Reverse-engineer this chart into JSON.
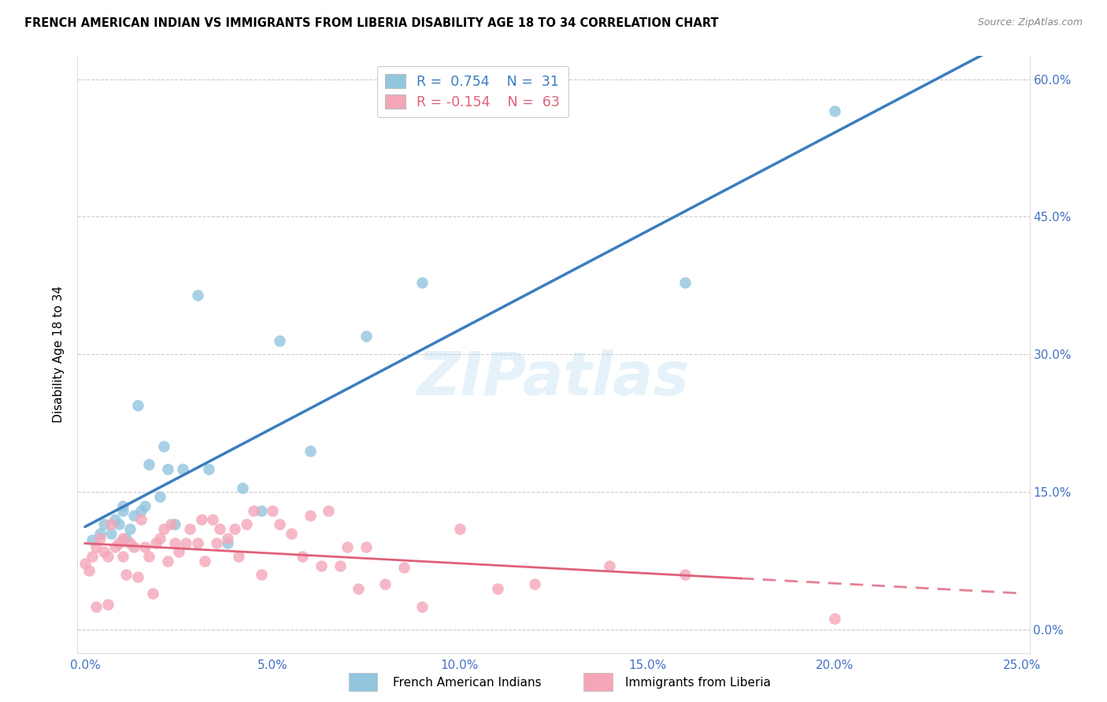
{
  "title": "FRENCH AMERICAN INDIAN VS IMMIGRANTS FROM LIBERIA DISABILITY AGE 18 TO 34 CORRELATION CHART",
  "source": "Source: ZipAtlas.com",
  "xlabel_ticks": [
    "0.0%",
    "5.0%",
    "10.0%",
    "15.0%",
    "20.0%",
    "25.0%"
  ],
  "ylabel_ticks_right": [
    "60.0%",
    "45.0%",
    "30.0%",
    "15.0%"
  ],
  "xlim": [
    0.0,
    0.25
  ],
  "ylim": [
    -0.025,
    0.625
  ],
  "ylabel": "Disability Age 18 to 34",
  "legend_labels": [
    "French American Indians",
    "Immigrants from Liberia"
  ],
  "blue_R": "R =  0.754",
  "blue_N": "N =  31",
  "pink_R": "R = -0.154",
  "pink_N": "N =  63",
  "blue_color": "#92c5de",
  "pink_color": "#f4a6b8",
  "blue_line_color": "#3b7dbf",
  "pink_line_color": "#e0607a",
  "watermark": "ZIPatlas",
  "blue_points_x": [
    0.002,
    0.004,
    0.005,
    0.007,
    0.008,
    0.009,
    0.01,
    0.01,
    0.011,
    0.012,
    0.013,
    0.014,
    0.015,
    0.016,
    0.017,
    0.02,
    0.021,
    0.022,
    0.024,
    0.026,
    0.03,
    0.033,
    0.038,
    0.042,
    0.047,
    0.052,
    0.06,
    0.075,
    0.09,
    0.16,
    0.2
  ],
  "blue_points_y": [
    0.098,
    0.105,
    0.115,
    0.105,
    0.12,
    0.115,
    0.135,
    0.13,
    0.1,
    0.11,
    0.125,
    0.245,
    0.13,
    0.135,
    0.18,
    0.145,
    0.2,
    0.175,
    0.115,
    0.175,
    0.365,
    0.175,
    0.095,
    0.155,
    0.13,
    0.315,
    0.195,
    0.32,
    0.378,
    0.378,
    0.565
  ],
  "pink_points_x": [
    0.0,
    0.001,
    0.002,
    0.003,
    0.003,
    0.004,
    0.005,
    0.006,
    0.006,
    0.007,
    0.008,
    0.009,
    0.01,
    0.01,
    0.011,
    0.012,
    0.013,
    0.014,
    0.015,
    0.016,
    0.017,
    0.018,
    0.019,
    0.02,
    0.021,
    0.022,
    0.023,
    0.024,
    0.025,
    0.027,
    0.028,
    0.03,
    0.031,
    0.032,
    0.034,
    0.035,
    0.036,
    0.038,
    0.04,
    0.041,
    0.043,
    0.045,
    0.047,
    0.05,
    0.052,
    0.055,
    0.058,
    0.06,
    0.063,
    0.065,
    0.068,
    0.07,
    0.073,
    0.075,
    0.08,
    0.085,
    0.09,
    0.1,
    0.11,
    0.12,
    0.14,
    0.16,
    0.2
  ],
  "pink_points_y": [
    0.072,
    0.065,
    0.08,
    0.09,
    0.025,
    0.1,
    0.085,
    0.08,
    0.028,
    0.115,
    0.09,
    0.095,
    0.1,
    0.08,
    0.06,
    0.095,
    0.09,
    0.058,
    0.12,
    0.09,
    0.08,
    0.04,
    0.095,
    0.1,
    0.11,
    0.075,
    0.115,
    0.095,
    0.085,
    0.095,
    0.11,
    0.095,
    0.12,
    0.075,
    0.12,
    0.095,
    0.11,
    0.1,
    0.11,
    0.08,
    0.115,
    0.13,
    0.06,
    0.13,
    0.115,
    0.105,
    0.08,
    0.125,
    0.07,
    0.13,
    0.07,
    0.09,
    0.045,
    0.09,
    0.05,
    0.068,
    0.025,
    0.11,
    0.045,
    0.05,
    0.07,
    0.06,
    0.012
  ]
}
